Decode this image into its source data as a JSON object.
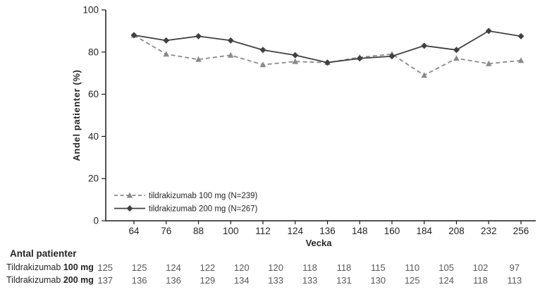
{
  "chart_data": {
    "type": "line",
    "title": "",
    "xlabel": "Vecka",
    "ylabel": "Andel patienter (%)",
    "ylim": [
      0,
      100
    ],
    "yticks": [
      0,
      20,
      40,
      60,
      80,
      100
    ],
    "categories": [
      "64",
      "76",
      "88",
      "100",
      "112",
      "124",
      "136",
      "148",
      "160",
      "184",
      "208",
      "232",
      "256"
    ],
    "grid": false,
    "legend_position": "inside-bottom-left",
    "series": [
      {
        "name": "tildrakizumab 100 mg (N=239)",
        "values": [
          88,
          79,
          76.5,
          78.5,
          74,
          75.5,
          75,
          77.5,
          79,
          69,
          77,
          74.5,
          76
        ],
        "color": "#8a8a8a",
        "line_style": "dashed",
        "marker": "triangle"
      },
      {
        "name": "tildrakizumab 200 mg (N=267)",
        "values": [
          88,
          85.5,
          87.5,
          85.5,
          81,
          78.5,
          75,
          77,
          78,
          83,
          81,
          90,
          87.5
        ],
        "color": "#404040",
        "line_style": "solid",
        "marker": "diamond"
      }
    ]
  },
  "table": {
    "title": "Antal patienter",
    "rows": [
      {
        "label_regular": "Tildrakizumab ",
        "label_bold": "100 mg",
        "values": [
          "125",
          "125",
          "124",
          "122",
          "120",
          "120",
          "118",
          "118",
          "115",
          "110",
          "105",
          "102",
          "97"
        ]
      },
      {
        "label_regular": "Tildrakizumab ",
        "label_bold": "200 mg",
        "values": [
          "137",
          "136",
          "136",
          "129",
          "134",
          "133",
          "133",
          "131",
          "130",
          "125",
          "124",
          "118",
          "113"
        ]
      }
    ]
  },
  "colors": {
    "axis": "#1a1a1a",
    "tick_text": "#262626",
    "legend_text": "#262626",
    "table_number_text": "#595959",
    "background": "#ffffff"
  }
}
